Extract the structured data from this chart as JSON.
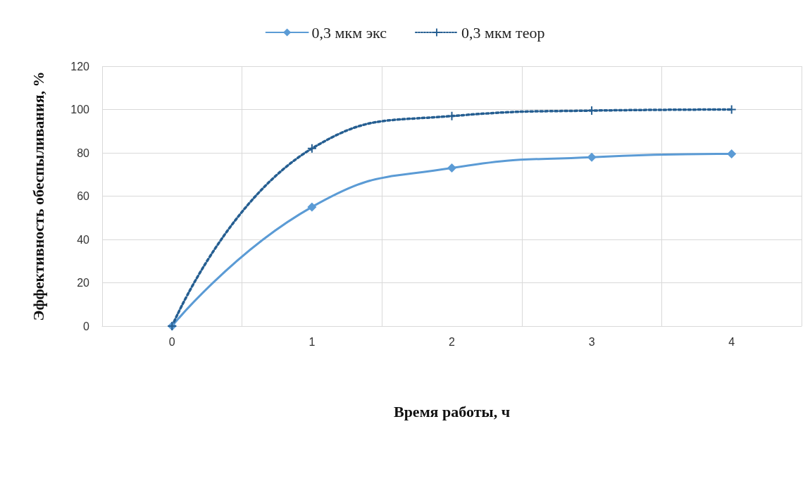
{
  "chart_data": {
    "type": "line",
    "xlabel": "Время работы, ч",
    "ylabel": "Эффективность обеспыливания, %",
    "categories": [
      "0",
      "1",
      "2",
      "3",
      "4"
    ],
    "series": [
      {
        "name": "0,3 мкм экс",
        "color": "#5b9bd5",
        "values": [
          0,
          55,
          73,
          78,
          79.5
        ],
        "marker": "diamond",
        "line_style": "solid"
      },
      {
        "name": "0,3 мкм теор",
        "color": "#255e91",
        "values": [
          0,
          82,
          97,
          99.5,
          100
        ],
        "marker": "cross",
        "line_style": "dotted"
      }
    ],
    "ylim": [
      0,
      120
    ],
    "yticks": [
      0,
      20,
      40,
      60,
      80,
      100,
      120
    ],
    "grid": true,
    "legend": "top"
  }
}
